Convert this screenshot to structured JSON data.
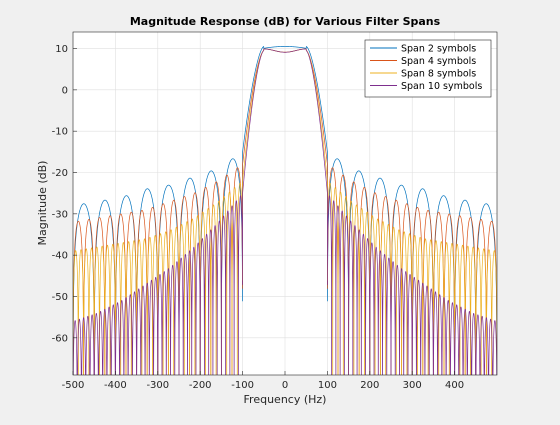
{
  "chart_data": {
    "type": "line",
    "title": "Magnitude Response (dB) for Various Filter Spans",
    "xlabel": "Frequency (Hz)",
    "ylabel": "Magnitude (dB)",
    "xlim": [
      -500,
      500
    ],
    "ylim": [
      -69,
      14
    ],
    "xticks": [
      -500,
      -400,
      -300,
      -200,
      -100,
      0,
      100,
      200,
      300,
      400
    ],
    "xtick_labels": [
      "-500",
      "-400",
      "-300",
      "-200",
      "-100",
      "0",
      "100",
      "200",
      "300",
      "400"
    ],
    "yticks": [
      10,
      0,
      -10,
      -20,
      -30,
      -40,
      -50,
      -60
    ],
    "ytick_labels": [
      "10",
      "0",
      "-10",
      "-20",
      "-30",
      "-40",
      "-50",
      "-60"
    ],
    "grid": true,
    "legend_position": "top-right",
    "series": [
      {
        "name": "Span 2 symbols",
        "color": "#0072BD",
        "span": 2,
        "peak_db": 10.5,
        "sidelobe_db": [
          -15,
          -19,
          -21,
          -23,
          -24,
          -26,
          -27,
          -28
        ]
      },
      {
        "name": "Span 4 symbols",
        "color": "#D95319",
        "span": 4,
        "peak_db": 9.5,
        "sidelobe_db": [
          -18,
          -22,
          -25,
          -27,
          -29,
          -30,
          -31,
          -32
        ]
      },
      {
        "name": "Span 8 symbols",
        "color": "#EDB120",
        "span": 8,
        "peak_db": 9.5,
        "sidelobe_db": [
          -22,
          -27,
          -31,
          -34,
          -36,
          -37,
          -38,
          -39
        ]
      },
      {
        "name": "Span 10 symbols",
        "color": "#7E2F8E",
        "span": 10,
        "peak_db": 9.5,
        "sidelobe_db": [
          -25,
          -32,
          -38,
          -43,
          -47,
          -51,
          -54,
          -56
        ]
      }
    ]
  }
}
